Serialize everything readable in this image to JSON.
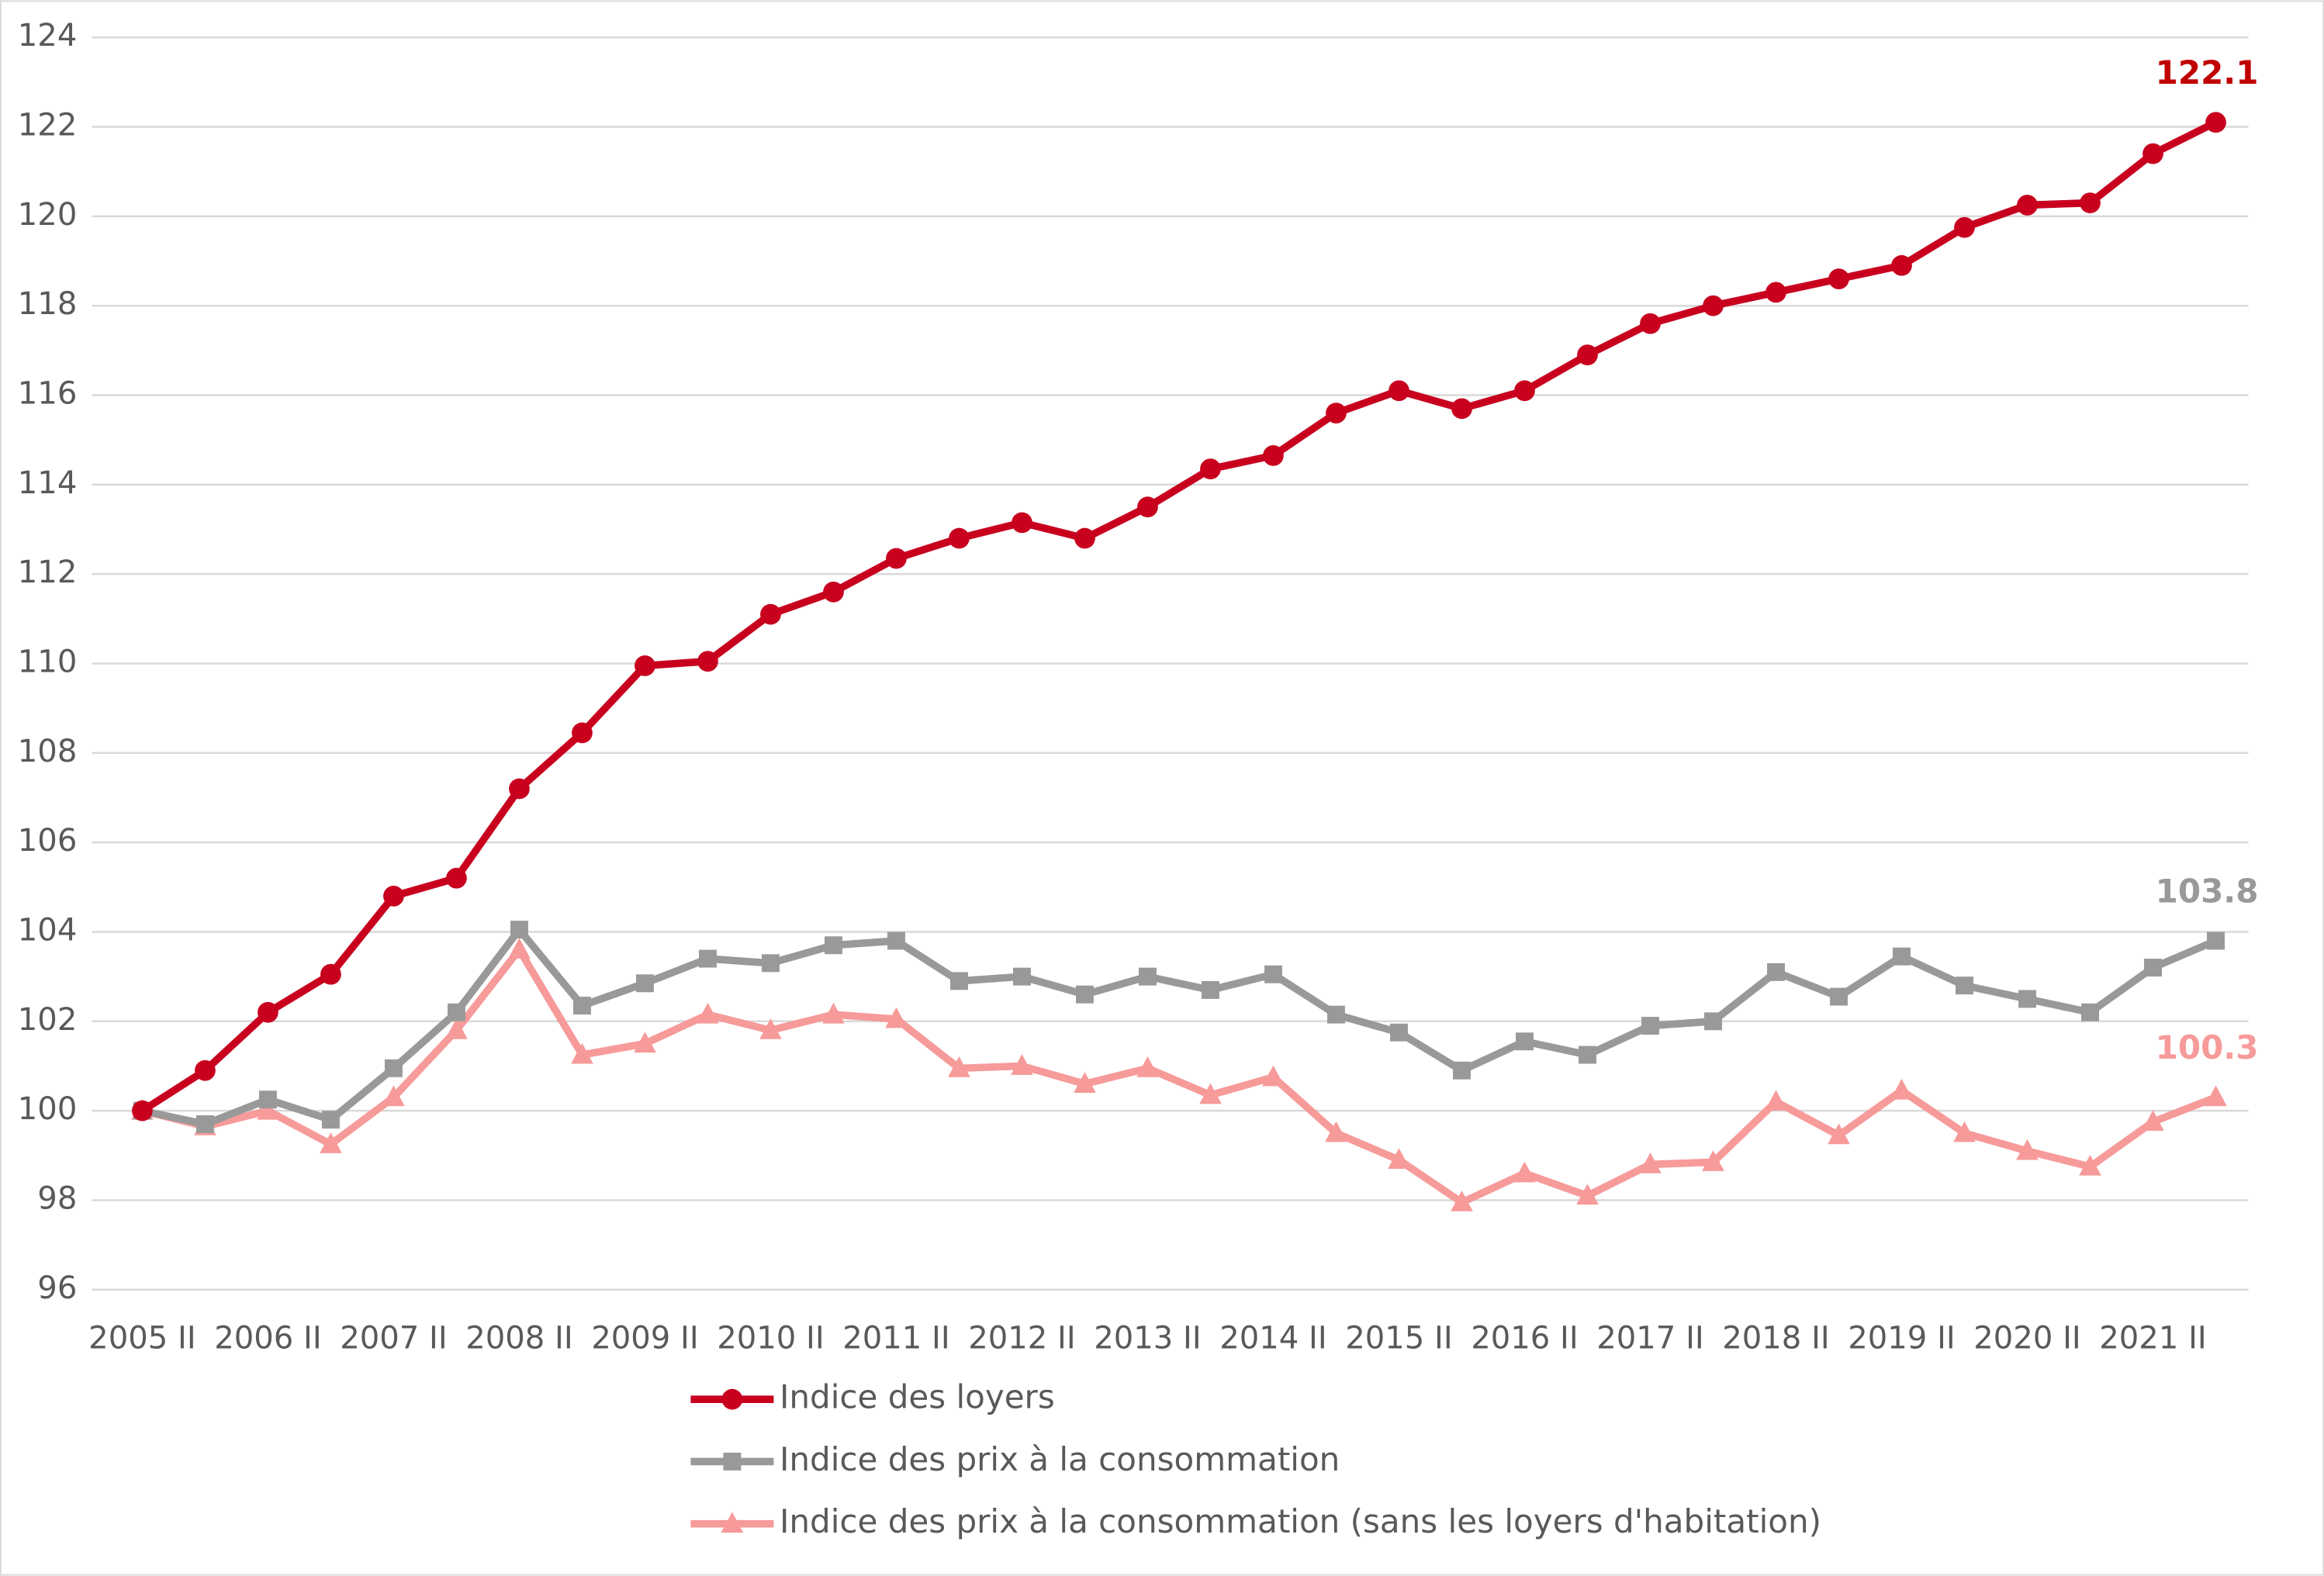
{
  "chart_data": {
    "type": "line",
    "categories": [
      "2005 II",
      null,
      "2006 II",
      null,
      "2007 II",
      null,
      "2008 II",
      null,
      "2009 II",
      null,
      "2010 II",
      null,
      "2011 II",
      null,
      "2012 II",
      null,
      "2013 II",
      null,
      "2014 II",
      null,
      "2015 II",
      null,
      "2016 II",
      null,
      "2017 II",
      null,
      "2018 II",
      null,
      "2019 II",
      null,
      "2020 II",
      null,
      "2021 II",
      null
    ],
    "series": [
      {
        "name": "Indice des loyers",
        "color": "#c8001e",
        "label_color": "#c00000",
        "marker": "circle",
        "values": [
          100,
          100.9,
          102.2,
          103.05,
          104.8,
          105.2,
          107.2,
          108.45,
          109.95,
          110.05,
          111.1,
          111.6,
          112.35,
          112.8,
          113.15,
          112.8,
          113.5,
          114.35,
          114.65,
          115.6,
          116.1,
          115.7,
          116.1,
          116.9,
          117.6,
          118.0,
          118.3,
          118.6,
          118.9,
          119.75,
          120.25,
          120.3,
          121.4,
          122.1
        ]
      },
      {
        "name": "Indice des prix à la consommation",
        "color": "#999999",
        "label_color": "#999999",
        "marker": "square",
        "values": [
          100,
          99.7,
          100.25,
          99.8,
          100.95,
          102.2,
          104.05,
          102.35,
          102.85,
          103.4,
          103.3,
          103.7,
          103.8,
          102.9,
          103.0,
          102.6,
          103.0,
          102.7,
          103.05,
          102.15,
          101.75,
          100.9,
          101.55,
          101.25,
          101.9,
          102.0,
          103.1,
          102.55,
          103.45,
          102.8,
          102.5,
          102.2,
          103.2,
          103.8
        ]
      },
      {
        "name": "Indice des prix à la consommation (sans les loyers d'habitation)",
        "color": "#f79a9a",
        "label_color": "#f79a9a",
        "marker": "triangle",
        "values": [
          100,
          99.65,
          100,
          99.25,
          100.3,
          101.8,
          103.6,
          101.25,
          101.5,
          102.15,
          101.8,
          102.15,
          102.05,
          100.95,
          101.0,
          100.6,
          100.95,
          100.35,
          100.75,
          99.5,
          98.9,
          97.95,
          98.6,
          98.1,
          98.8,
          98.85,
          100.2,
          99.45,
          100.45,
          99.5,
          99.1,
          98.75,
          99.75,
          100.3
        ]
      }
    ],
    "data_labels": "last",
    "ylim": [
      96,
      124
    ],
    "yticks": [
      96,
      98,
      100,
      102,
      104,
      106,
      108,
      110,
      112,
      114,
      116,
      118,
      120,
      122,
      124
    ],
    "grid": true,
    "legend": "bottom"
  }
}
